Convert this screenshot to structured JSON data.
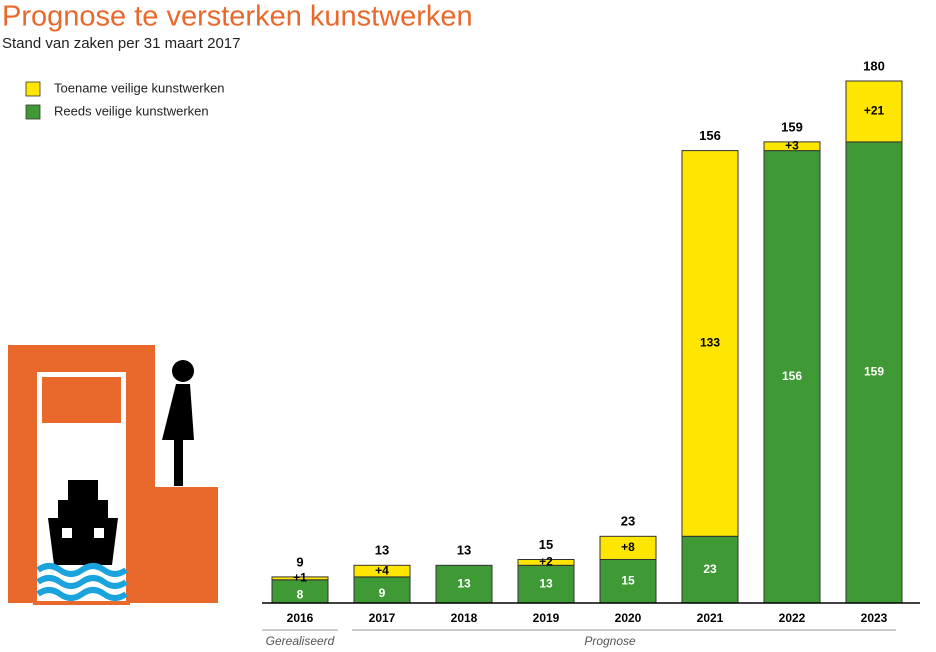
{
  "chart_data": {
    "type": "stacked-bar",
    "title": "Prognose te versterken kunstwerken",
    "subtitle": "Stand van zaken per 31 maart 2017",
    "categories": [
      "2016",
      "2017",
      "2018",
      "2019",
      "2020",
      "2021",
      "2022",
      "2023"
    ],
    "series": [
      {
        "name": "Reeds veilige kunstwerken",
        "color": "#3f9a35",
        "values": [
          8,
          9,
          13,
          13,
          15,
          23,
          156,
          159
        ]
      },
      {
        "name": "Toename veilige kunstwerken",
        "color": "#ffe600",
        "values": [
          1,
          4,
          0,
          2,
          8,
          133,
          3,
          21
        ],
        "value_labels": [
          "+1",
          "+4",
          null,
          "+2",
          "+8",
          "133",
          "+3",
          "+21"
        ]
      }
    ],
    "totals": [
      9,
      13,
      13,
      15,
      23,
      156,
      159,
      180
    ],
    "annotations": [
      "Gerealiseerd",
      "Prognose"
    ],
    "ylim": [
      0,
      180
    ]
  }
}
